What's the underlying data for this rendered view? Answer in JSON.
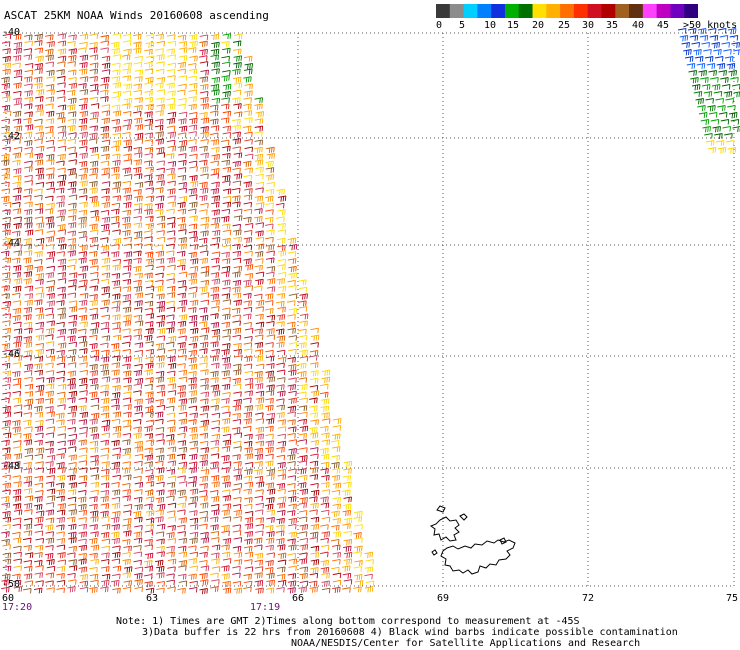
{
  "title": "ASCAT 25KM NOAA Winds 20160608 ascending",
  "colorbar": {
    "colors": [
      "#3a3a3a",
      "#8c8c8c",
      "#00d0ff",
      "#0080ff",
      "#1030e0",
      "#00b000",
      "#007000",
      "#ffe000",
      "#ffb000",
      "#ff7000",
      "#ff3000",
      "#d01020",
      "#b00000",
      "#a06020",
      "#603010",
      "#ff40ff",
      "#c000c0",
      "#7000c0",
      "#300080"
    ],
    "labels": [
      "0",
      "5",
      "10",
      "15",
      "20",
      "25",
      "30",
      "35",
      "40",
      "45",
      ">50 knots"
    ]
  },
  "axes": {
    "lat_labels": [
      "-40",
      "-42",
      "-44",
      "-46",
      "-48",
      "-50"
    ],
    "lon_labels": [
      "60",
      "63",
      "66",
      "69",
      "72",
      "75"
    ],
    "time_labels": [
      "17:20",
      "17:19"
    ]
  },
  "notes": {
    "line1": "Note: 1) Times are GMT 2)Times along bottom correspond to measurement at -45S",
    "line2": "3)Data buffer is 22 hrs from 20160608 4) Black wind barbs indicate possible contamination",
    "line3": "NOAA/NESDIS/Center for Satellite Applications and Research"
  }
}
